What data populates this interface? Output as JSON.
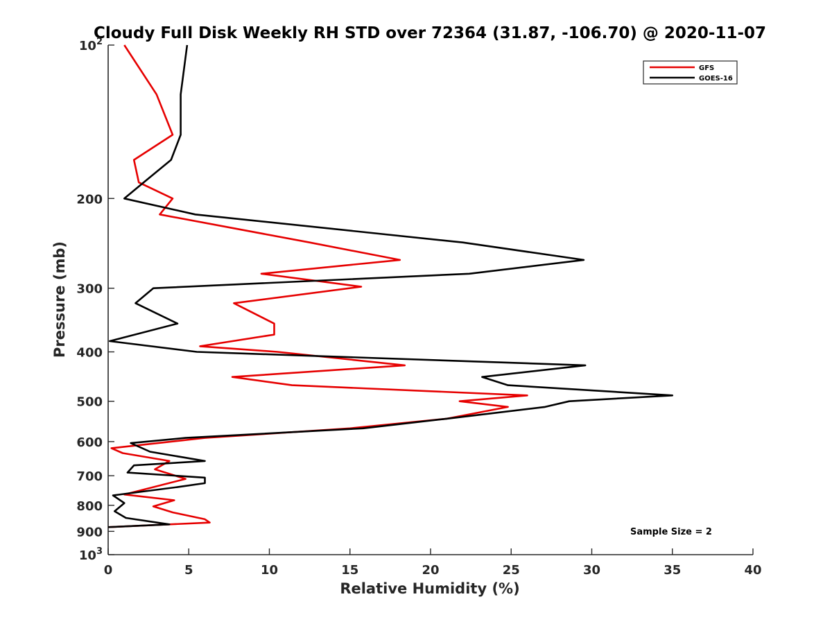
{
  "chart_data": {
    "type": "line",
    "title": "Cloudy Full Disk Weekly RH STD over 72364 (31.87, -106.70) @ 2020-11-07",
    "xlabel": "Relative Humidity (%)",
    "ylabel": "Pressure (mb)",
    "xlim": [
      0,
      40
    ],
    "ylim": [
      100,
      1000
    ],
    "y_scale": "log",
    "y_reversed": true,
    "grid": false,
    "legend_position": "top-right",
    "x_ticks": [
      0,
      5,
      10,
      15,
      20,
      25,
      30,
      35,
      40
    ],
    "y_ticks": [
      {
        "value": 100,
        "base": "10",
        "exp": "2"
      },
      {
        "value": 200,
        "label": "200"
      },
      {
        "value": 300,
        "label": "300"
      },
      {
        "value": 400,
        "label": "400"
      },
      {
        "value": 500,
        "label": "500"
      },
      {
        "value": 600,
        "label": "600"
      },
      {
        "value": 700,
        "label": "700"
      },
      {
        "value": 800,
        "label": "800"
      },
      {
        "value": 900,
        "label": "900"
      },
      {
        "value": 1000,
        "base": "10",
        "exp": "3"
      }
    ],
    "series": [
      {
        "name": "GFS",
        "color": "#e60000",
        "points": [
          [
            1.0,
            100
          ],
          [
            3.0,
            125
          ],
          [
            4.0,
            150
          ],
          [
            1.6,
            168
          ],
          [
            1.9,
            186
          ],
          [
            4.0,
            200
          ],
          [
            3.2,
            215
          ],
          [
            12.5,
            244
          ],
          [
            18.1,
            264
          ],
          [
            9.5,
            281
          ],
          [
            15.7,
            298
          ],
          [
            7.8,
            321
          ],
          [
            10.3,
            352
          ],
          [
            10.3,
            370
          ],
          [
            5.7,
            390
          ],
          [
            10.5,
            400
          ],
          [
            18.4,
            425
          ],
          [
            7.7,
            448
          ],
          [
            11.4,
            465
          ],
          [
            26.0,
            487
          ],
          [
            21.8,
            500
          ],
          [
            24.8,
            513
          ],
          [
            21.0,
            541
          ],
          [
            15.0,
            565
          ],
          [
            6.0,
            590
          ],
          [
            0.2,
            618
          ],
          [
            0.9,
            632
          ],
          [
            3.8,
            655
          ],
          [
            2.9,
            680
          ],
          [
            4.8,
            710
          ],
          [
            1.0,
            762
          ],
          [
            4.1,
            782
          ],
          [
            2.8,
            804
          ],
          [
            4.0,
            826
          ],
          [
            6.0,
            852
          ],
          [
            6.3,
            865
          ],
          [
            0,
            883
          ]
        ]
      },
      {
        "name": "GOES-16",
        "color": "#000000",
        "points": [
          [
            4.9,
            100
          ],
          [
            4.5,
            125
          ],
          [
            4.5,
            150
          ],
          [
            3.9,
            168
          ],
          [
            2.2,
            186
          ],
          [
            1.0,
            200
          ],
          [
            5.4,
            215
          ],
          [
            22.0,
            244
          ],
          [
            29.5,
            264
          ],
          [
            22.4,
            281
          ],
          [
            2.8,
            300
          ],
          [
            1.7,
            321
          ],
          [
            4.3,
            352
          ],
          [
            0.1,
            381
          ],
          [
            5.5,
            400
          ],
          [
            29.6,
            425
          ],
          [
            23.2,
            448
          ],
          [
            24.8,
            465
          ],
          [
            35.0,
            487
          ],
          [
            28.6,
            500
          ],
          [
            27.1,
            513
          ],
          [
            21.0,
            541
          ],
          [
            15.8,
            565
          ],
          [
            4.8,
            590
          ],
          [
            1.4,
            604
          ],
          [
            2.6,
            628
          ],
          [
            6.0,
            655
          ],
          [
            1.6,
            668
          ],
          [
            1.2,
            690
          ],
          [
            6.0,
            706
          ],
          [
            6.0,
            724
          ],
          [
            4.4,
            736
          ],
          [
            0.3,
            765
          ],
          [
            1.0,
            792
          ],
          [
            0.4,
            822
          ],
          [
            1.1,
            847
          ],
          [
            3.8,
            872
          ],
          [
            0,
            883
          ]
        ]
      }
    ],
    "annotations": [
      "Sample Size = 2"
    ]
  }
}
